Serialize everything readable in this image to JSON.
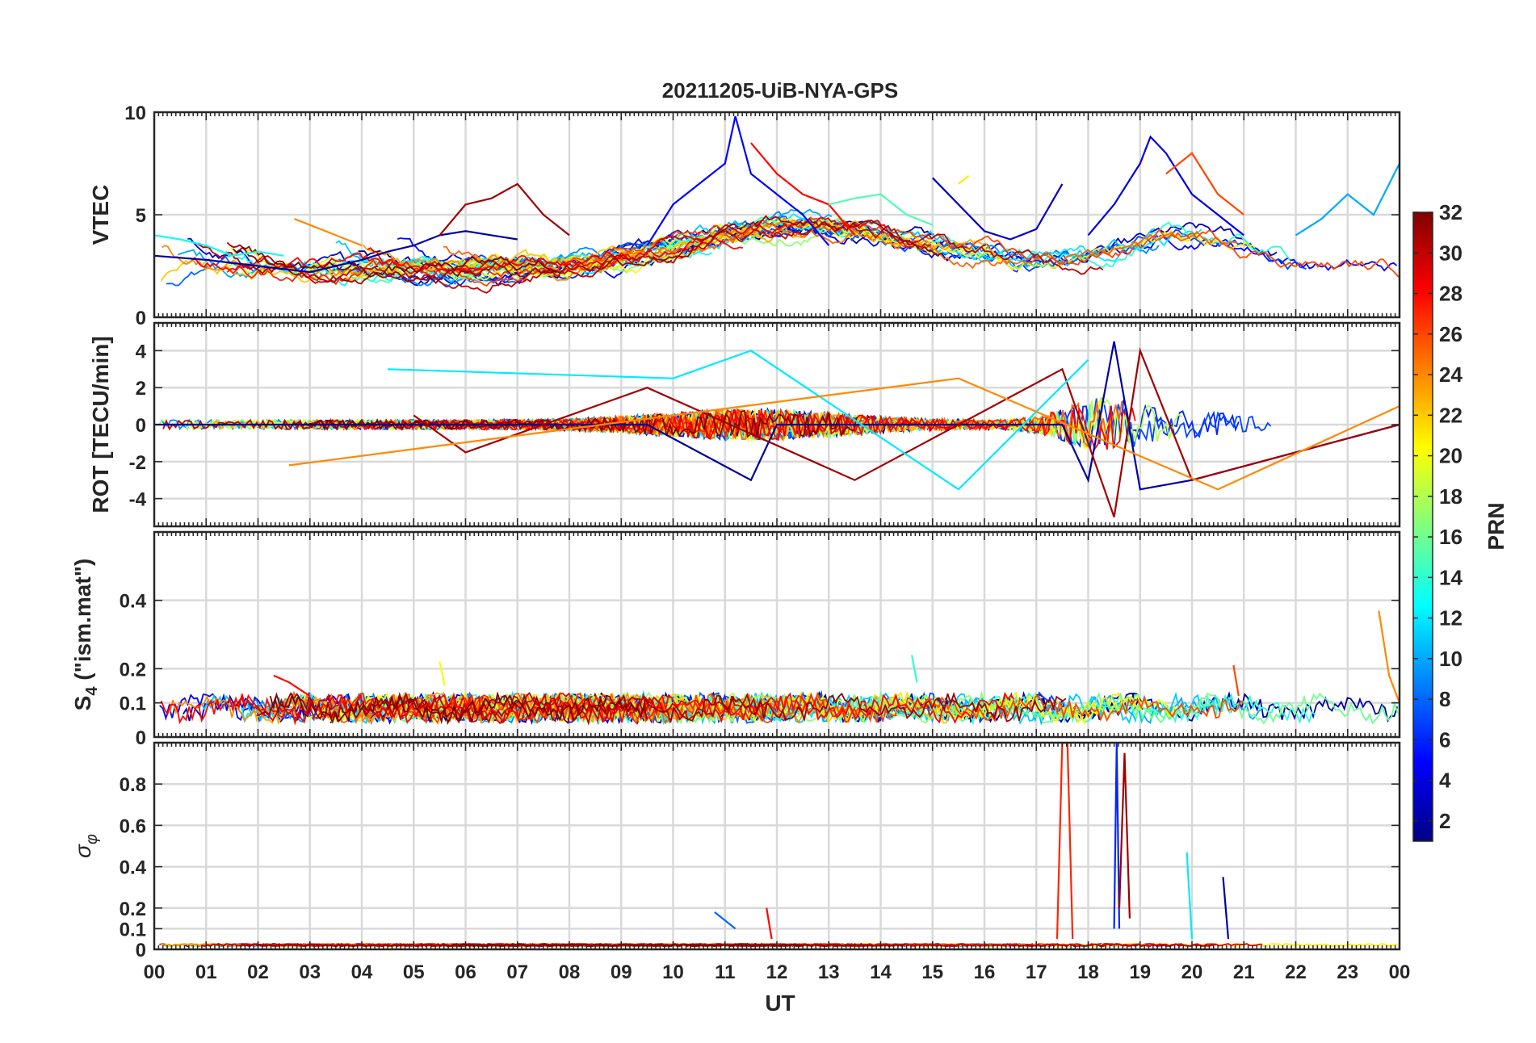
{
  "title": "20211205-UiB-NYA-GPS",
  "xlabel": "UT",
  "x_ticks": [
    "00",
    "01",
    "02",
    "03",
    "04",
    "05",
    "06",
    "07",
    "08",
    "09",
    "10",
    "11",
    "12",
    "13",
    "14",
    "15",
    "16",
    "17",
    "18",
    "19",
    "20",
    "21",
    "22",
    "23",
    "00"
  ],
  "colorbar": {
    "label": "PRN",
    "range": [
      1,
      32
    ],
    "tick_labels": [
      "2",
      "4",
      "6",
      "8",
      "10",
      "12",
      "14",
      "16",
      "18",
      "20",
      "22",
      "24",
      "26",
      "28",
      "30",
      "32"
    ],
    "colormap": "jet"
  },
  "panels": [
    {
      "ylabel": "VTEC",
      "ylim": [
        0,
        10
      ],
      "y_ticks": [
        0,
        5,
        10
      ],
      "y_tick_labels": [
        "0",
        "5",
        "10"
      ]
    },
    {
      "ylabel": "ROT [TECU/min]",
      "ylim": [
        -5.5,
        5.5
      ],
      "y_ticks": [
        -4,
        -2,
        0,
        2,
        4
      ],
      "y_tick_labels": [
        "-4",
        "-2",
        "0",
        "2",
        "4"
      ]
    },
    {
      "ylabel": "S4 (\"ism.mat\")",
      "ylabel_main": "S",
      "ylabel_sub": "4",
      "ylabel_rest": " (\"ism.mat\")",
      "ylim": [
        0,
        0.6
      ],
      "y_ticks": [
        0,
        0.1,
        0.2,
        0.4
      ],
      "y_tick_labels": [
        "0",
        "0.1",
        "0.2",
        "0.4"
      ]
    },
    {
      "ylabel": "σφ",
      "ylabel_main": "σ",
      "ylabel_sub": "φ",
      "ylim": [
        0,
        1
      ],
      "y_ticks": [
        0,
        0.1,
        0.2,
        0.4,
        0.6,
        0.8
      ],
      "y_tick_labels": [
        "0",
        "0.1",
        "0.2",
        "0.4",
        "0.6",
        "0.8"
      ]
    }
  ],
  "chart_data": [
    {
      "type": "line",
      "panel": "VTEC",
      "x_unit": "hours UT",
      "series": [
        {
          "prn": 2,
          "x": [
            0,
            1,
            2,
            3,
            4,
            4.5,
            5,
            5.5,
            6,
            6.5,
            7
          ],
          "y": [
            3,
            2.8,
            2.5,
            2.2,
            2.8,
            3.2,
            3.5,
            4,
            4.2,
            4,
            3.8
          ]
        },
        {
          "prn": 5,
          "x": [
            9.5,
            10,
            10.5,
            11,
            11.2,
            11.5,
            12,
            12.5,
            13
          ],
          "y": [
            3.5,
            5.5,
            6.5,
            7.5,
            9.8,
            7,
            6,
            5,
            3.5
          ]
        },
        {
          "prn": 3,
          "x": [
            15,
            15.5,
            16,
            16.5,
            17,
            17.5
          ],
          "y": [
            6.8,
            5.5,
            4.2,
            3.8,
            4.3,
            6.5
          ]
        },
        {
          "prn": 4,
          "x": [
            18,
            18.5,
            19,
            19.2,
            19.5,
            20,
            20.5,
            21
          ],
          "y": [
            4,
            5.5,
            7.5,
            8.8,
            8,
            6,
            5,
            4
          ]
        },
        {
          "prn": 31,
          "x": [
            5.5,
            6,
            6.5,
            7,
            7.5,
            8
          ],
          "y": [
            4,
            5.5,
            5.8,
            6.5,
            5,
            4
          ]
        },
        {
          "prn": 28,
          "x": [
            11.5,
            12,
            12.5,
            13,
            13.5
          ],
          "y": [
            8.5,
            7,
            6,
            5.5,
            4
          ]
        },
        {
          "prn": 13,
          "x": [
            0,
            0.5,
            1,
            1.5,
            2,
            2.5
          ],
          "y": [
            4,
            3.8,
            3.5,
            3,
            3.2,
            3
          ]
        },
        {
          "prn": 24,
          "x": [
            2.7,
            3,
            3.5,
            4
          ],
          "y": [
            4.8,
            4.5,
            4,
            3.5
          ]
        },
        {
          "prn": 15,
          "x": [
            13,
            13.5,
            14,
            14.5,
            15
          ],
          "y": [
            5.5,
            5.8,
            6,
            5,
            4.5
          ]
        },
        {
          "prn": 10,
          "x": [
            22,
            22.5,
            23,
            23.5,
            24
          ],
          "y": [
            4,
            4.8,
            6,
            5,
            7.5
          ]
        },
        {
          "prn": 21,
          "x": [
            15.5,
            15.7
          ],
          "y": [
            6.5,
            6.9
          ]
        },
        {
          "prn": 26,
          "x": [
            19.5,
            20,
            20.5,
            21
          ],
          "y": [
            7,
            8,
            6,
            5
          ]
        }
      ]
    },
    {
      "type": "line",
      "panel": "ROT [TECU/min]",
      "x_unit": "hours UT",
      "series": [
        {
          "prn": 2,
          "x": [
            0,
            4,
            9.5,
            11.5,
            12,
            17.5,
            18,
            18.5,
            19,
            20,
            24
          ],
          "y": [
            0,
            0,
            0,
            -3,
            0,
            0,
            -3,
            4.5,
            -3.5,
            -3,
            0
          ]
        },
        {
          "prn": 31,
          "x": [
            5,
            6,
            9.5,
            13.5,
            17.5,
            18.5,
            19,
            20,
            24
          ],
          "y": [
            0.5,
            -1.5,
            2,
            -3,
            3,
            -5,
            4,
            -3,
            0
          ]
        },
        {
          "prn": 12,
          "x": [
            4.5,
            10,
            11.5,
            15.5,
            18
          ],
          "y": [
            3,
            2.5,
            4,
            -3.5,
            3.5
          ]
        },
        {
          "prn": 24,
          "x": [
            2.6,
            15.5,
            20.5,
            24
          ],
          "y": [
            -2.2,
            2.5,
            -3.5,
            1
          ]
        }
      ]
    },
    {
      "type": "line",
      "panel": "S4",
      "x_unit": "hours UT",
      "series": [
        {
          "prn": 20,
          "x": [
            5.5,
            5.6
          ],
          "y": [
            0.22,
            0.15
          ]
        },
        {
          "prn": 14,
          "x": [
            14.6,
            14.7
          ],
          "y": [
            0.24,
            0.16
          ]
        },
        {
          "prn": 24,
          "x": [
            23.6,
            23.8,
            24
          ],
          "y": [
            0.37,
            0.18,
            0.1
          ]
        },
        {
          "prn": 28,
          "x": [
            2.3,
            2.6,
            3
          ],
          "y": [
            0.18,
            0.16,
            0.12
          ]
        },
        {
          "prn": 26,
          "x": [
            20.8,
            20.9
          ],
          "y": [
            0.21,
            0.12
          ]
        }
      ],
      "baseline": 0.08
    },
    {
      "type": "line",
      "panel": "σφ",
      "x_unit": "hours UT",
      "series": [
        {
          "prn": 27,
          "x": [
            17.4,
            17.5,
            17.6,
            17.7
          ],
          "y": [
            0.05,
            1,
            1,
            0.05
          ]
        },
        {
          "prn": 6,
          "x": [
            18.5,
            18.55,
            18.6
          ],
          "y": [
            0.1,
            1,
            0.1
          ]
        },
        {
          "prn": 31,
          "x": [
            18.6,
            18.7,
            18.8
          ],
          "y": [
            0.2,
            0.95,
            0.15
          ]
        },
        {
          "prn": 12,
          "x": [
            19.9,
            20
          ],
          "y": [
            0.47,
            0.05
          ]
        },
        {
          "prn": 2,
          "x": [
            20.6,
            20.7
          ],
          "y": [
            0.35,
            0.05
          ]
        },
        {
          "prn": 28,
          "x": [
            11.8,
            11.9
          ],
          "y": [
            0.2,
            0.05
          ]
        },
        {
          "prn": 8,
          "x": [
            10.8,
            11.2
          ],
          "y": [
            0.18,
            0.1
          ]
        }
      ],
      "baseline": 0.02
    }
  ]
}
